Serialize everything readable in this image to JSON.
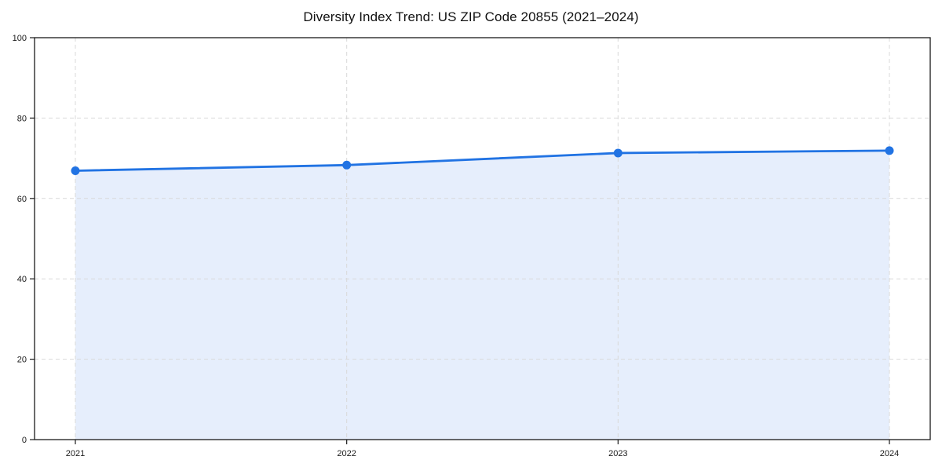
{
  "page": {
    "background": "#ffffff"
  },
  "chart_data": {
    "type": "area",
    "title": "Diversity Index Trend: US ZIP Code 20855 (2021–2024)",
    "x": [
      2021,
      2022,
      2023,
      2024
    ],
    "xtick_labels": [
      "2021",
      "2022",
      "2023",
      "2024"
    ],
    "series": [
      {
        "name": "Diversity Index",
        "values": [
          66.9,
          68.3,
          71.3,
          71.9
        ]
      }
    ],
    "xlabel": "",
    "ylabel": "",
    "ylim": [
      0,
      100
    ],
    "yticks": [
      0,
      20,
      40,
      60,
      80,
      100
    ],
    "grid": true,
    "grid_style": "dashed",
    "legend": "none",
    "colors": {
      "line": "#2173e3",
      "marker": "#2173e3",
      "fill": "#e6eefc",
      "grid": "#d9d9d9",
      "spine": "#1a1a1a",
      "text": "#1a1a1a"
    }
  }
}
